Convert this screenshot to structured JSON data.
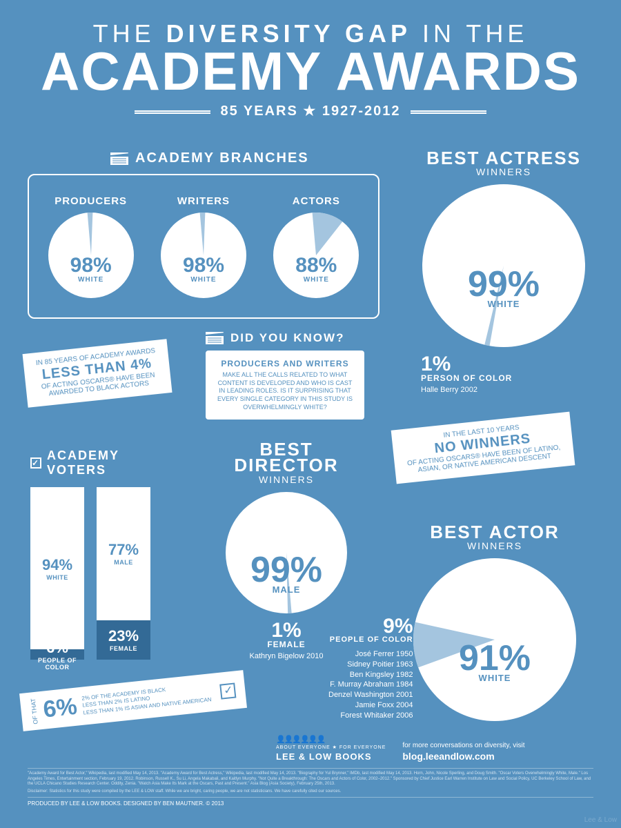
{
  "colors": {
    "bg": "#5591bf",
    "white": "#ffffff",
    "accent": "#a4c5df",
    "dark": "#336a96"
  },
  "title": {
    "line1_a": "THE ",
    "line1_b": "DIVERSITY GAP",
    "line1_c": " IN THE",
    "line2": "ACADEMY AWARDS",
    "subtitle": "85 YEARS ★ 1927-2012"
  },
  "branches": {
    "header": "ACADEMY BRANCHES",
    "items": [
      {
        "label": "PRODUCERS",
        "percent": 98,
        "percent_label": "98%",
        "sublabel": "WHITE",
        "radius": 62
      },
      {
        "label": "WRITERS",
        "percent": 98,
        "percent_label": "98%",
        "sublabel": "WHITE",
        "radius": 62
      },
      {
        "label": "ACTORS",
        "percent": 88,
        "percent_label": "88%",
        "sublabel": "WHITE",
        "radius": 62
      }
    ]
  },
  "best_actress": {
    "title": "BEST ACTRESS",
    "subtitle": "WINNERS",
    "percent": 99,
    "percent_label": "99%",
    "percent_sublabel": "WHITE",
    "radius": 118,
    "minor_pct": "1%",
    "minor_label": "PERSON OF COLOR",
    "minor_name": "Halle Berry 2002"
  },
  "did_you_know": {
    "header": "DID YOU KNOW?",
    "box_title": "PRODUCERS AND WRITERS",
    "box_text": "MAKE ALL THE CALLS RELATED TO WHAT CONTENT IS DEVELOPED AND WHO IS CAST IN LEADING ROLES. IS IT SURPRISING THAT EVERY SINGLE CATEGORY IN THIS STUDY IS OVERWHELMINGLY WHITE?"
  },
  "banner1": {
    "pre": "IN 85 YEARS OF ACADEMY AWARDS",
    "big": "LESS THAN 4%",
    "post": "OF ACTING OSCARS® HAVE BEEN AWARDED TO BLACK ACTORS"
  },
  "banner2": {
    "pre": "IN THE LAST 10 YEARS",
    "big": "NO WINNERS",
    "post": "OF ACTING OSCARS® HAVE BEEN OF LATINO, ASIAN, OR NATIVE AMERICAN DESCENT"
  },
  "voters": {
    "header": "ACADEMY VOTERS",
    "bars": [
      {
        "top_pct": 94,
        "top_label": "94%",
        "top_sub": "WHITE",
        "bottom_pct": 6,
        "bottom_label": "6%",
        "bottom_sub": "PEOPLE OF COLOR"
      },
      {
        "top_pct": 77,
        "top_label": "77%",
        "top_sub": "MALE",
        "bottom_pct": 23,
        "bottom_label": "23%",
        "bottom_sub": "FEMALE"
      }
    ]
  },
  "best_director": {
    "title": "BEST DIRECTOR",
    "subtitle": "WINNERS",
    "percent": 99,
    "percent_label": "99%",
    "percent_sublabel": "MALE",
    "radius": 88,
    "minor_pct": "1%",
    "minor_label": "FEMALE",
    "minor_name": "Kathryn Bigelow 2010"
  },
  "best_actor": {
    "title": "BEST ACTOR",
    "subtitle": "WINNERS",
    "percent": 91,
    "percent_label": "91%",
    "percent_sublabel": "WHITE",
    "radius": 118,
    "minor_pct": "9%",
    "minor_label": "PEOPLE OF COLOR",
    "list": [
      "José Ferrer 1950",
      "Sidney Poitier 1963",
      "Ben Kingsley 1982",
      "F. Murray Abraham 1984",
      "Denzel Washington 2001",
      "Jamie Foxx 2004",
      "Forest Whitaker 2006"
    ]
  },
  "of_that": {
    "of": "OF THAT",
    "pct": "6%",
    "l1": "2% OF THE ACADEMY IS BLACK",
    "l2": "LESS THAN 2% IS LATINO",
    "l3": "LESS THAN 1% IS ASIAN AND NATIVE AMERICAN"
  },
  "footer": {
    "tag": "ABOUT EVERYONE ★ FOR EVERYONE",
    "brand": "LEE & LOW BOOKS",
    "blog_pre": "for more conversations on diversity, visit",
    "blog": "blog.leeandlow.com",
    "sources": "\"Academy Award for Best Actor,\" Wikipedia, last modified May 14, 2013. \"Academy Award for Best Actress,\" Wikipedia, last modified May 14, 2013. \"Biography for Yul Brynner,\" IMDb, last modified May 14, 2013. Horn, John, Nicole Sperling, and Doug Smith. \"Oscar Voters Overwhelmingly White, Male.\" Los Angeles Times, Entertainment section, February 19, 2012. Robinson, Russell K., Su Li, Angela Makabali, and Kaitlyn Murphy. \"Not Quite a Breakthrough: The Oscars and Actors of Color, 2002–2012.\" Sponsored by Chief Justice Earl Warren Institute on Law and Social Policy, UC Berkeley School of Law, and the UCLA Chicano Studies Research Center. Oddity, Zenia. \"Watch Asia Make Its Mark at the Oscars, Past and Present.\" Asia Blog (Asia Society), February 25th, 2013.",
    "disclaimer": "Disclaimer: Statistics for this study were compiled by the LEE & LOW staff. While we are bright, caring people, we are not statisticians. We have carefully cited our sources.",
    "produced": "PRODUCED BY LEE & LOW BOOKS. DESIGNED BY BEN MAUTNER. © 2013",
    "credit": "Lee & Low"
  }
}
